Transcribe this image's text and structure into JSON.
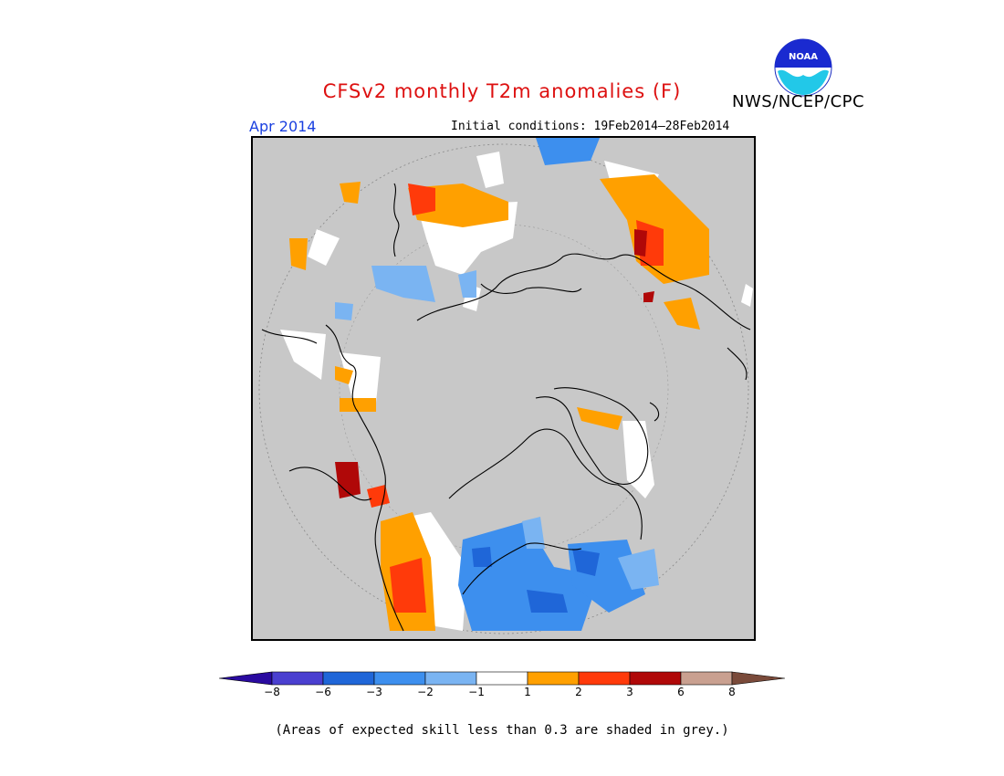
{
  "title": "CFSv2 monthly T2m anomalies (F)",
  "agency": "NWS/NCEP/CPC",
  "logo_text": "NOAA",
  "valid_month": "Apr 2014",
  "initial_conditions": "Initial conditions: 19Feb2014–28Feb2014",
  "footnote": "(Areas of expected skill less than 0.3 are shaded in grey.)",
  "colors": {
    "title": "#dd1010",
    "month": "#1a40e0",
    "background_grey": "#c8c8c8"
  },
  "legend": {
    "bins": [
      {
        "color": "#2a0aa0"
      },
      {
        "color": "#4a3fd0"
      },
      {
        "color": "#1f66d8"
      },
      {
        "color": "#3d8fee"
      },
      {
        "color": "#7ab4f2"
      },
      {
        "color": "#ffffff"
      },
      {
        "color": "#ffa000"
      },
      {
        "color": "#ff3a0a"
      },
      {
        "color": "#b00808"
      },
      {
        "color": "#c9a090"
      },
      {
        "color": "#7a4a3a"
      }
    ],
    "tick_labels": [
      "−8",
      "−6",
      "−3",
      "−2",
      "−1",
      "1",
      "2",
      "3",
      "6",
      "8"
    ]
  }
}
